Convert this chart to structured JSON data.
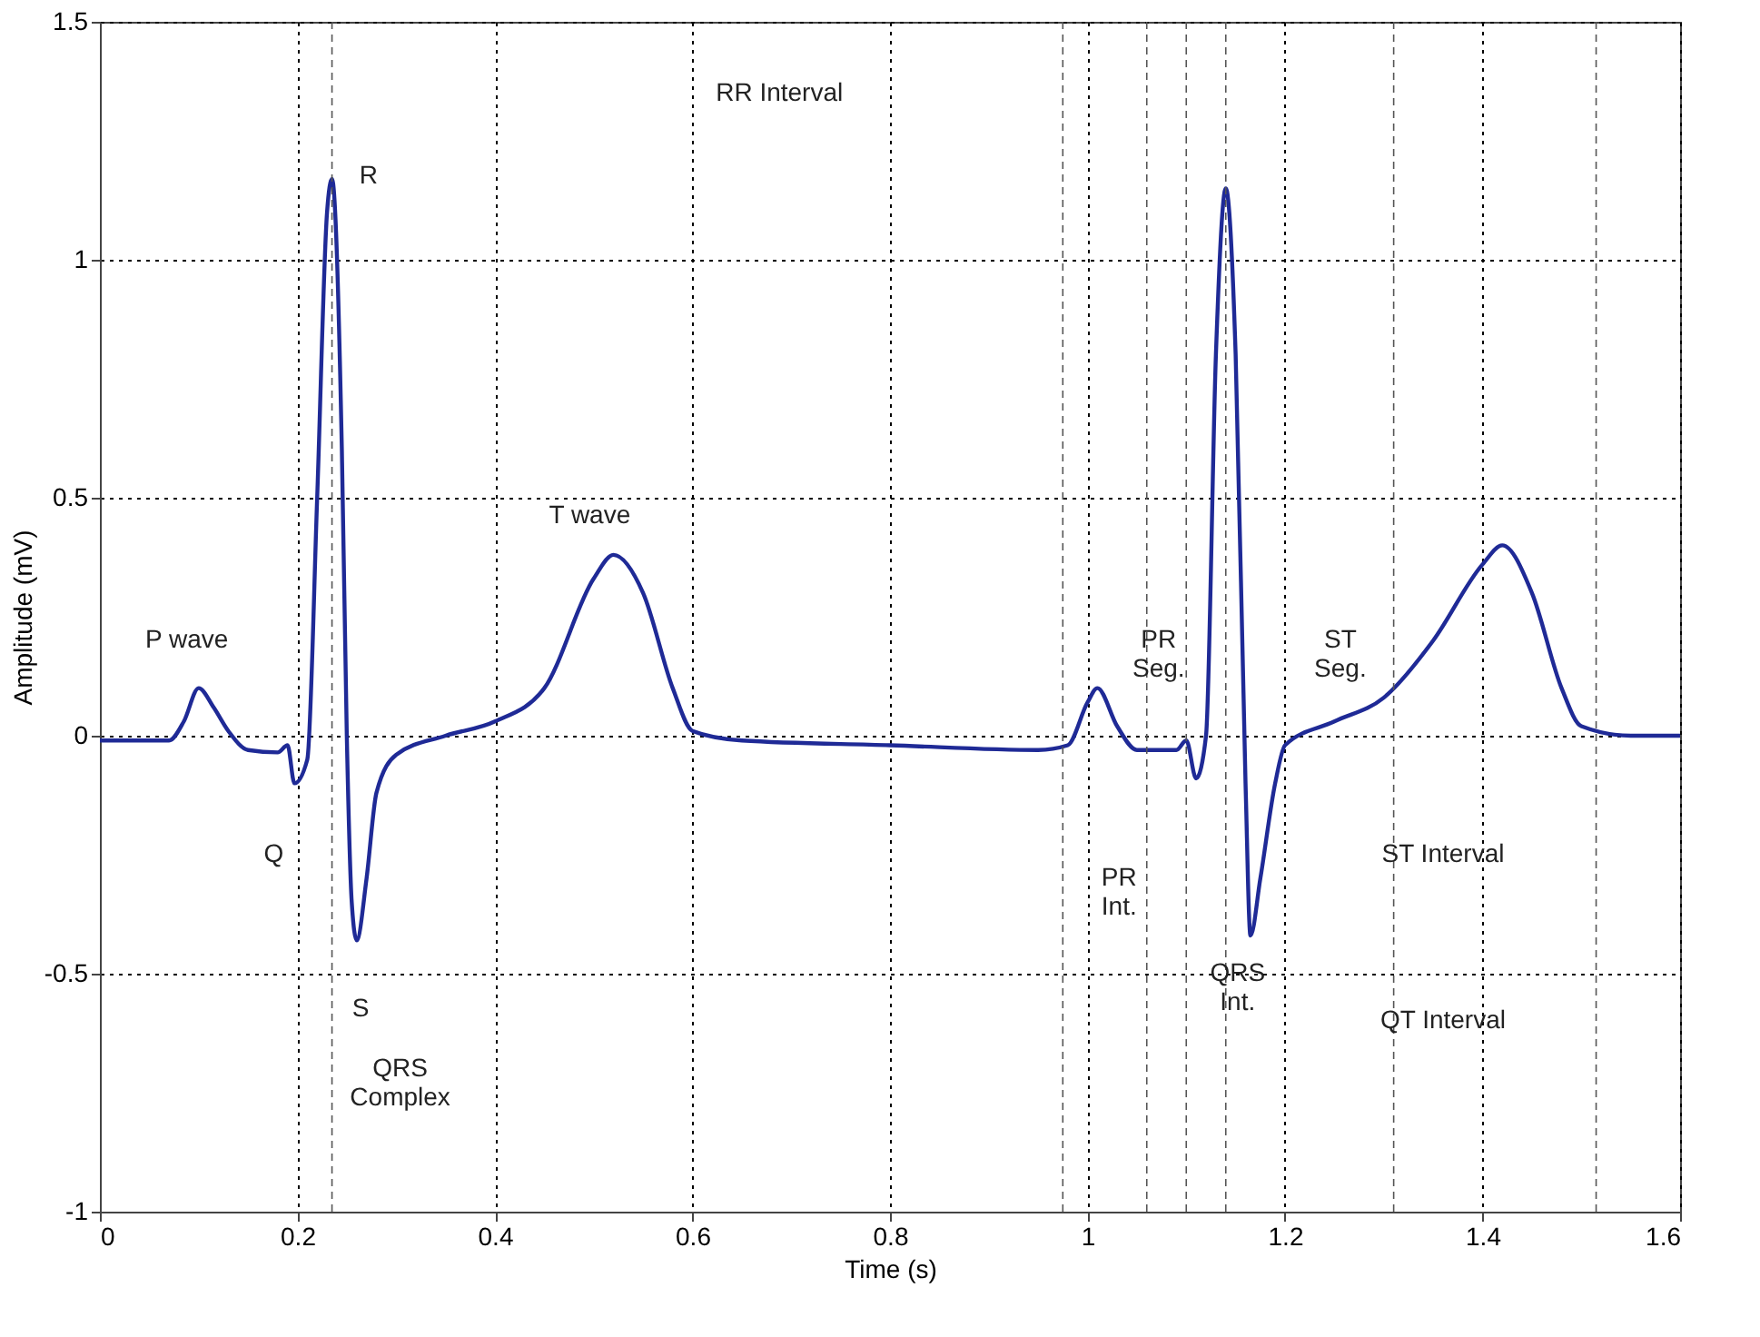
{
  "chart_data": {
    "type": "line",
    "xlabel": "Time (s)",
    "ylabel": "Amplitude (mV)",
    "xlim": [
      0,
      1.6
    ],
    "xticks": [
      0,
      0.2,
      0.4,
      0.6,
      0.8,
      1,
      1.2,
      1.4,
      1.6
    ],
    "ylim": [
      -1,
      1.5
    ],
    "yticks": [
      -1,
      -0.5,
      0,
      0.5,
      1,
      1.5
    ],
    "grid": true,
    "marker": "none",
    "line_style": "solid",
    "x": [
      0,
      0.07,
      0.085,
      0.1,
      0.115,
      0.13,
      0.15,
      0.18,
      0.19,
      0.197,
      0.21,
      0.22,
      0.23,
      0.235,
      0.245,
      0.25,
      0.255,
      0.26,
      0.27,
      0.28,
      0.3,
      0.35,
      0.4,
      0.45,
      0.5,
      0.52,
      0.55,
      0.58,
      0.6,
      0.65,
      0.8,
      0.95,
      0.98,
      1.0,
      1.01,
      1.03,
      1.05,
      1.09,
      1.1,
      1.11,
      1.12,
      1.13,
      1.14,
      1.15,
      1.16,
      1.165,
      1.175,
      1.19,
      1.2,
      1.25,
      1.3,
      1.35,
      1.4,
      1.42,
      1.45,
      1.48,
      1.5,
      1.55,
      1.6
    ],
    "series": [
      {
        "color": "#1f2a96",
        "values": [
          -0.01,
          -0.01,
          0.03,
          0.1,
          0.06,
          0.01,
          -0.03,
          -0.035,
          -0.02,
          -0.1,
          -0.05,
          0.5,
          1.1,
          1.17,
          0.6,
          0,
          -0.35,
          -0.43,
          -0.3,
          -0.12,
          -0.04,
          0,
          0.03,
          0.1,
          0.33,
          0.38,
          0.3,
          0.1,
          0.01,
          -0.01,
          -0.02,
          -0.03,
          -0.02,
          0.07,
          0.1,
          0.02,
          -0.03,
          -0.03,
          -0.01,
          -0.09,
          0,
          0.8,
          1.15,
          0.8,
          -0.1,
          -0.42,
          -0.3,
          -0.1,
          -0.02,
          0.03,
          0.08,
          0.2,
          0.36,
          0.4,
          0.3,
          0.1,
          0.02,
          0,
          0
        ]
      }
    ],
    "ref_lines": [
      {
        "axis": "x",
        "value": 0.235,
        "line_style": "dashed"
      },
      {
        "axis": "x",
        "value": 1.14,
        "line_style": "dashed"
      },
      {
        "axis": "x",
        "value": 0.975,
        "line_style": "dashed"
      },
      {
        "axis": "x",
        "value": 1.06,
        "line_style": "dashed"
      },
      {
        "axis": "x",
        "value": 1.1,
        "line_style": "dashed"
      },
      {
        "axis": "x",
        "value": 1.31,
        "line_style": "dashed"
      },
      {
        "axis": "x",
        "value": 1.515,
        "line_style": "dashed"
      }
    ],
    "annotations": [
      "RR Interval",
      "R",
      "P wave",
      "T wave",
      "Q",
      "S",
      "QRS\nComplex",
      "PR\nSeg.",
      "ST\nSeg.",
      "PR\nInt.",
      "QRS\nInt.",
      "ST Interval",
      "QT Interval"
    ]
  }
}
